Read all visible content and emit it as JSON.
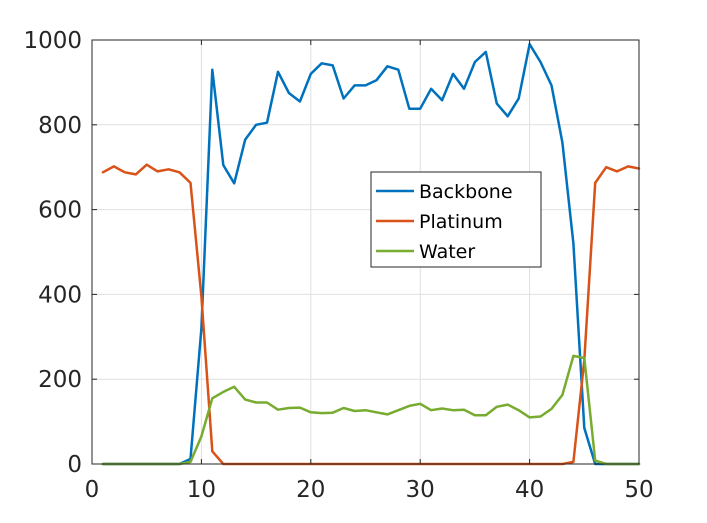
{
  "chart_data": {
    "type": "line",
    "title": "",
    "xlabel": "",
    "ylabel": "",
    "xlim": [
      0,
      50
    ],
    "ylim": [
      0,
      1000
    ],
    "xticks": [
      0,
      10,
      20,
      30,
      40,
      50
    ],
    "yticks": [
      0,
      200,
      400,
      600,
      800,
      1000
    ],
    "grid": true,
    "legend_position": "center-right",
    "x": [
      1,
      2,
      3,
      4,
      5,
      6,
      7,
      8,
      9,
      10,
      11,
      12,
      13,
      14,
      15,
      16,
      17,
      18,
      19,
      20,
      21,
      22,
      23,
      24,
      25,
      26,
      27,
      28,
      29,
      30,
      31,
      32,
      33,
      34,
      35,
      36,
      37,
      38,
      39,
      40,
      41,
      42,
      43,
      44,
      45,
      46,
      47,
      48,
      49,
      50
    ],
    "series": [
      {
        "name": "Backbone",
        "color": "#0072BD",
        "values": [
          0,
          0,
          0,
          0,
          0,
          0,
          0,
          0,
          12,
          320,
          930,
          705,
          662,
          765,
          800,
          805,
          925,
          875,
          855,
          920,
          945,
          940,
          862,
          893,
          893,
          905,
          938,
          930,
          838,
          838,
          885,
          858,
          920,
          885,
          948,
          972,
          850,
          820,
          862,
          990,
          948,
          893,
          758,
          520,
          85,
          0,
          0,
          0,
          0,
          0
        ]
      },
      {
        "name": "Platinum",
        "color": "#D95319",
        "values": [
          688,
          702,
          688,
          683,
          706,
          690,
          695,
          688,
          663,
          395,
          30,
          0,
          0,
          0,
          0,
          0,
          0,
          0,
          0,
          0,
          0,
          0,
          0,
          0,
          0,
          0,
          0,
          0,
          0,
          0,
          0,
          0,
          0,
          0,
          0,
          0,
          0,
          0,
          0,
          0,
          0,
          0,
          0,
          5,
          245,
          663,
          700,
          690,
          702,
          697
        ]
      },
      {
        "name": "Water",
        "color": "#77AC30",
        "values": [
          0,
          0,
          0,
          0,
          0,
          0,
          0,
          0,
          5,
          65,
          155,
          170,
          182,
          152,
          145,
          145,
          128,
          132,
          133,
          122,
          120,
          121,
          132,
          125,
          127,
          122,
          117,
          127,
          137,
          142,
          127,
          131,
          127,
          128,
          115,
          115,
          135,
          140,
          127,
          110,
          112,
          130,
          163,
          255,
          250,
          8,
          0,
          0,
          0,
          0
        ]
      }
    ]
  }
}
